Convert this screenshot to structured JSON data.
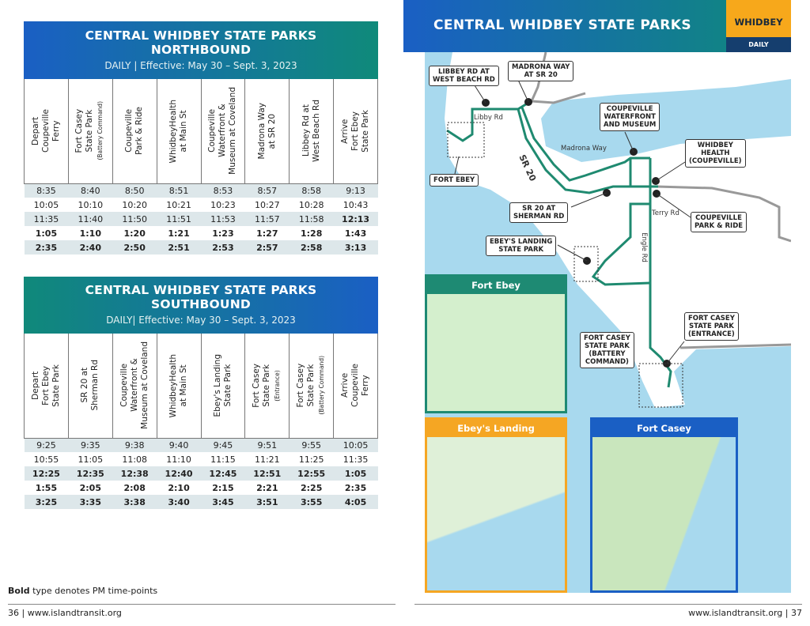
{
  "northbound": {
    "title": "CENTRAL WHIDBEY STATE PARKS",
    "direction": "NORTHBOUND",
    "subtitle": "DAILY | Effective: May 30 – Sept. 3, 2023",
    "columns": [
      [
        "Depart\nCoupeville\nFerry",
        ""
      ],
      [
        "Fort Casey\nState Park",
        "(Battery Command)"
      ],
      [
        "Coupeville\nPark & Ride",
        ""
      ],
      [
        "WhidbeyHealth\nat Main St",
        ""
      ],
      [
        "Coupeville\nWaterfront &\nMuseum at Coveland",
        ""
      ],
      [
        "Madrona Way\nat SR 20",
        ""
      ],
      [
        "Libbey Rd at\nWest Beach Rd",
        ""
      ],
      [
        "Arrive\nFort Ebey\nState Park",
        ""
      ]
    ],
    "rows": [
      {
        "cells": [
          "8:35",
          "8:40",
          "8:50",
          "8:51",
          "8:53",
          "8:57",
          "8:58",
          "9:13"
        ],
        "pm_from": 8
      },
      {
        "cells": [
          "10:05",
          "10:10",
          "10:20",
          "10:21",
          "10:23",
          "10:27",
          "10:28",
          "10:43"
        ],
        "pm_from": 8
      },
      {
        "cells": [
          "11:35",
          "11:40",
          "11:50",
          "11:51",
          "11:53",
          "11:57",
          "11:58",
          "12:13"
        ],
        "pm_from": 7
      },
      {
        "cells": [
          "1:05",
          "1:10",
          "1:20",
          "1:21",
          "1:23",
          "1:27",
          "1:28",
          "1:43"
        ],
        "pm_from": 0
      },
      {
        "cells": [
          "2:35",
          "2:40",
          "2:50",
          "2:51",
          "2:53",
          "2:57",
          "2:58",
          "3:13"
        ],
        "pm_from": 0
      }
    ]
  },
  "southbound": {
    "title": "CENTRAL WHIDBEY STATE PARKS",
    "direction": "SOUTHBOUND",
    "subtitle": "DAILY| Effective: May 30 – Sept. 3, 2023",
    "columns": [
      [
        "Depart\nFort Ebey\nState Park",
        ""
      ],
      [
        "SR 20 at\nSherman Rd",
        ""
      ],
      [
        "Coupeville\nWaterfront &\nMuseum at Coveland",
        ""
      ],
      [
        "WhidbeyHealth\nat Main St",
        ""
      ],
      [
        "Ebey's Landing\nState Park",
        ""
      ],
      [
        "Fort Casey\nState Park",
        "(Entrance)"
      ],
      [
        "Fort Casey\nState Park",
        "(Battery Command)"
      ],
      [
        "Arrive\nCoupeville\nFerry",
        ""
      ]
    ],
    "rows": [
      {
        "cells": [
          "9:25",
          "9:35",
          "9:38",
          "9:40",
          "9:45",
          "9:51",
          "9:55",
          "10:05"
        ],
        "pm_from": 8
      },
      {
        "cells": [
          "10:55",
          "11:05",
          "11:08",
          "11:10",
          "11:15",
          "11:21",
          "11:25",
          "11:35"
        ],
        "pm_from": 8
      },
      {
        "cells": [
          "12:25",
          "12:35",
          "12:38",
          "12:40",
          "12:45",
          "12:51",
          "12:55",
          "1:05"
        ],
        "pm_from": 0
      },
      {
        "cells": [
          "1:55",
          "2:05",
          "2:08",
          "2:10",
          "2:15",
          "2:21",
          "2:25",
          "2:35"
        ],
        "pm_from": 0
      },
      {
        "cells": [
          "3:25",
          "3:35",
          "3:38",
          "3:40",
          "3:45",
          "3:51",
          "3:55",
          "4:05"
        ],
        "pm_from": 0
      }
    ]
  },
  "note": {
    "bold": "Bold",
    "rest": " type denotes PM time-points"
  },
  "footer": {
    "left": "36 | www.islandtransit.org",
    "right": "www.islandtransit.org | 37"
  },
  "map": {
    "title": "CENTRAL WHIDBEY STATE PARKS",
    "badge": "WHIDBEY",
    "badge_sub": "DAILY",
    "stops": {
      "libbey": "LIBBEY RD AT\nWEST BEACH RD",
      "madrona": "MADRONA WAY\nAT SR 20",
      "waterfront": "COUPEVILLE\nWATERFRONT\nAND MUSEUM",
      "health": "WHIDBEY\nHEALTH\n(COUPEVILLE)",
      "fort_ebey": "FORT EBEY",
      "sherman": "SR 20 AT\nSHERMAN RD",
      "park_ride": "COUPEVILLE\nPARK & RIDE",
      "ebeys": "EBEY'S LANDING\nSTATE PARK",
      "casey_entrance": "FORT CASEY\nSTATE PARK\n(ENTRANCE)",
      "casey_battery": "FORT CASEY\nSTATE PARK\n(BATTERY\nCOMMAND)"
    },
    "roads": {
      "libby": "Libby Rd",
      "madrona": "Madrona Way",
      "sr20": "SR 20",
      "terry": "Terry Rd",
      "engle": "Engle Rd"
    },
    "insets": {
      "fort_ebey": "Fort Ebey",
      "ebeys_landing": "Ebey's Landing",
      "fort_casey": "Fort Casey"
    },
    "colors": {
      "route": "#1f8a70",
      "water": "#a8d9ee",
      "north_arrow": "#f5a623",
      "south_arrow": "#1a5fc4"
    }
  }
}
